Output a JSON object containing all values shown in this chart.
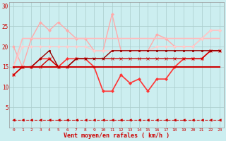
{
  "xlabel": "Vent moyen/en rafales ( km/h )",
  "bg_color": "#cceef0",
  "grid_color": "#aacccc",
  "x": [
    0,
    1,
    2,
    3,
    4,
    5,
    6,
    7,
    8,
    9,
    10,
    11,
    12,
    13,
    14,
    15,
    16,
    17,
    18,
    19,
    20,
    21,
    22,
    23
  ],
  "ylim": [
    0,
    31
  ],
  "yticks": [
    5,
    10,
    15,
    20,
    25,
    30
  ],
  "lines": [
    {
      "y": [
        15,
        15,
        15,
        15,
        15,
        15,
        15,
        15,
        15,
        15,
        15,
        15,
        15,
        15,
        15,
        15,
        15,
        15,
        15,
        15,
        15,
        15,
        15,
        15
      ],
      "color": "#cc0000",
      "lw": 1.5,
      "marker": null,
      "ms": 0,
      "linestyle": "-",
      "zorder": 5
    },
    {
      "y": [
        13,
        15,
        15,
        15,
        17,
        15,
        15,
        17,
        17,
        17,
        17,
        17,
        17,
        17,
        17,
        17,
        17,
        17,
        17,
        17,
        17,
        17,
        19,
        19
      ],
      "color": "#cc0000",
      "lw": 1.0,
      "marker": "x",
      "ms": 2.5,
      "linestyle": "-",
      "zorder": 4
    },
    {
      "y": [
        15,
        15,
        15,
        17,
        19,
        15,
        15,
        17,
        17,
        17,
        17,
        19,
        19,
        19,
        19,
        19,
        19,
        19,
        19,
        19,
        19,
        19,
        19,
        19
      ],
      "color": "#990000",
      "lw": 1.0,
      "marker": "s",
      "ms": 2.0,
      "linestyle": "-",
      "zorder": 4
    },
    {
      "y": [
        13,
        15,
        15,
        17,
        17,
        15,
        17,
        17,
        17,
        15,
        9,
        9,
        13,
        11,
        12,
        9,
        12,
        12,
        15,
        17,
        17,
        17,
        19,
        19
      ],
      "color": "#ff3333",
      "lw": 1.2,
      "marker": "D",
      "ms": 2.0,
      "linestyle": "-",
      "zorder": 3
    },
    {
      "y": [
        20,
        15,
        22,
        26,
        24,
        26,
        24,
        22,
        22,
        19,
        19,
        28,
        19,
        19,
        19,
        19,
        23,
        22,
        20,
        20,
        20,
        22,
        24,
        24
      ],
      "color": "#ffaaaa",
      "lw": 1.0,
      "marker": "D",
      "ms": 2.0,
      "linestyle": "-",
      "zorder": 2
    },
    {
      "y": [
        15,
        22,
        22,
        22,
        22,
        22,
        22,
        22,
        22,
        22,
        22,
        22,
        22,
        22,
        22,
        22,
        22,
        22,
        22,
        22,
        22,
        22,
        22,
        22
      ],
      "color": "#ffbbbb",
      "lw": 1.2,
      "marker": null,
      "ms": 0,
      "linestyle": "-",
      "zorder": 2
    },
    {
      "y": [
        15,
        20,
        20,
        20,
        20,
        20,
        20,
        20,
        20,
        19,
        19,
        19,
        19,
        19,
        19,
        19,
        20,
        20,
        20,
        20,
        20,
        22,
        24,
        24
      ],
      "color": "#ffcccc",
      "lw": 1.0,
      "marker": "D",
      "ms": 2.0,
      "linestyle": "-",
      "zorder": 2
    },
    {
      "y": [
        2,
        2,
        2,
        2,
        2,
        2,
        2,
        2,
        2,
        2,
        2,
        2,
        2,
        2,
        2,
        2,
        2,
        2,
        2,
        2,
        2,
        2,
        2,
        2
      ],
      "color": "#cc0000",
      "lw": 0.8,
      "marker": "<",
      "ms": 2.5,
      "linestyle": "--",
      "zorder": 5
    }
  ]
}
